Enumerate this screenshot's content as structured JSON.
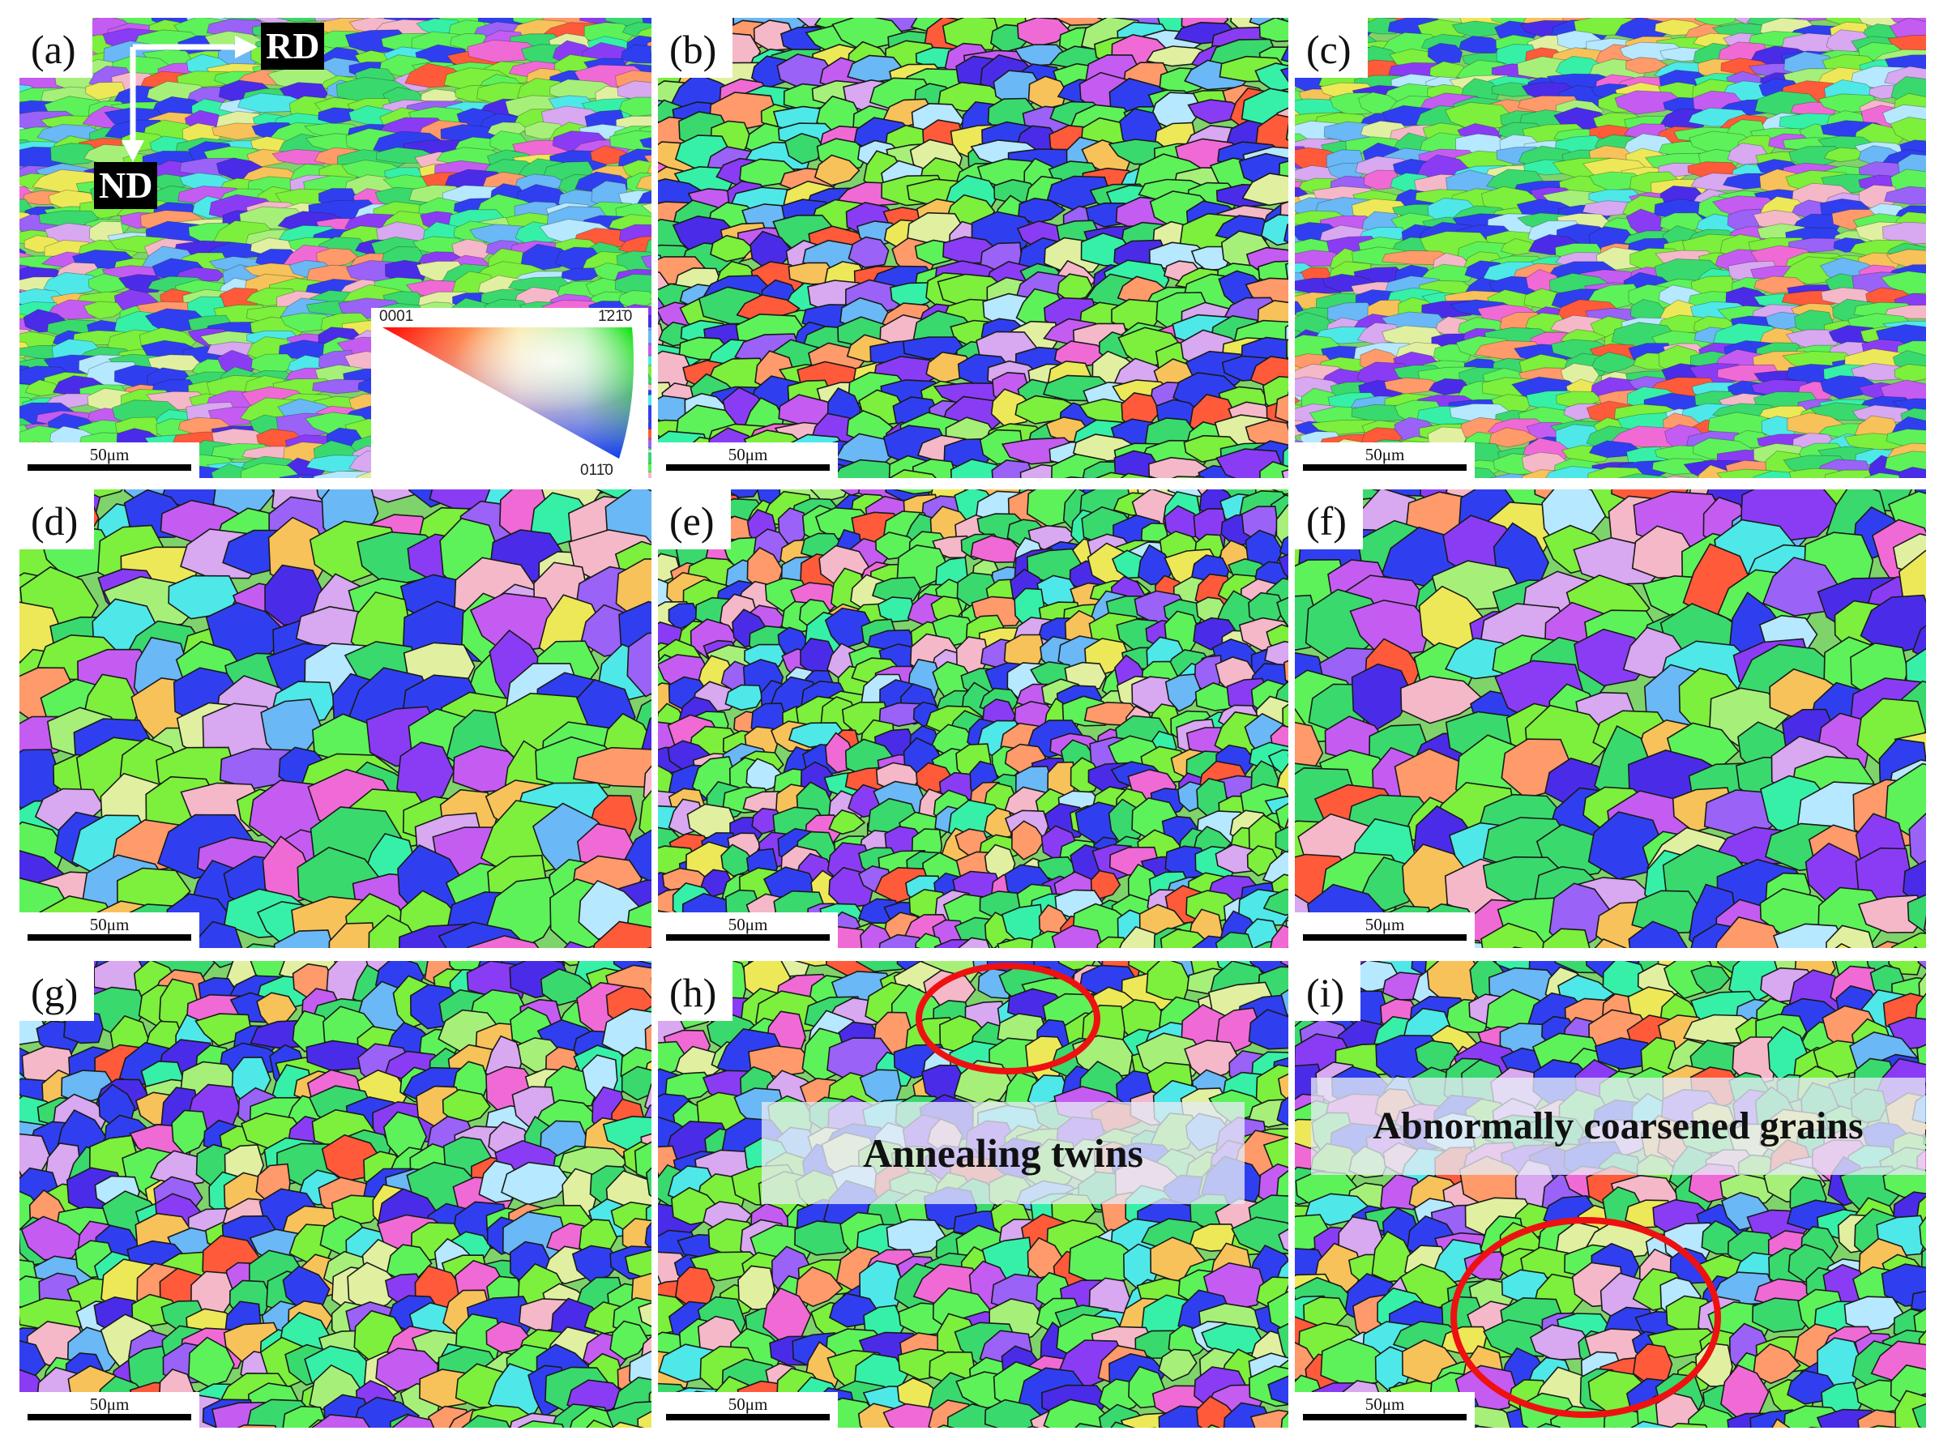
{
  "panels": [
    {
      "label": "(a)",
      "scale": "50μm",
      "style": "deformed"
    },
    {
      "label": "(b)",
      "scale": "50μm",
      "style": "mixed"
    },
    {
      "label": "(c)",
      "scale": "50μm",
      "style": "deformed"
    },
    {
      "label": "(d)",
      "scale": "50μm",
      "style": "coarse"
    },
    {
      "label": "(e)",
      "scale": "50μm",
      "style": "fine"
    },
    {
      "label": "(f)",
      "scale": "50μm",
      "style": "coarse"
    },
    {
      "label": "(g)",
      "scale": "50μm",
      "style": "equiaxed"
    },
    {
      "label": "(h)",
      "scale": "50μm",
      "style": "equiaxed"
    },
    {
      "label": "(i)",
      "scale": "50μm",
      "style": "equiaxed"
    }
  ],
  "axes": {
    "rd": "RD",
    "nd": "ND"
  },
  "legend": {
    "top_left": "0001",
    "top_right": "1̄21̄0",
    "bottom": "011̄0"
  },
  "annotations": {
    "twins": "Annealing twins",
    "coarse": "Abnormally coarsened grains"
  },
  "colors": {
    "grain_palette": [
      "#5df25a",
      "#7cf03c",
      "#3ad96e",
      "#2f3ff0",
      "#4a2ce8",
      "#8a3cf5",
      "#c45cf2",
      "#f06ad6",
      "#ff9a6a",
      "#f7c25a",
      "#ede858",
      "#a6f07a",
      "#4fe8e8",
      "#6ab8f5",
      "#d8a8f0",
      "#f5b8c8",
      "#9a62f7",
      "#36f0a8",
      "#ff5a3a",
      "#b6e8ff",
      "#e0f0a0"
    ],
    "annotation_ring": "#ee1111"
  }
}
